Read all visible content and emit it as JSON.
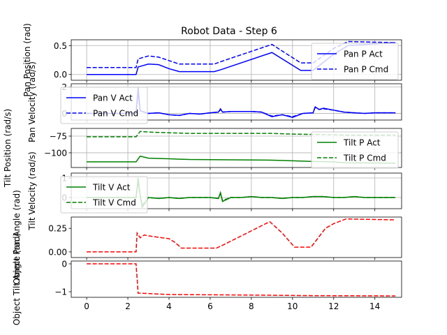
{
  "title": "Robot Data - Step 6",
  "chart_data": [
    {
      "type": "line",
      "ylabel": "Pan Position (rad)",
      "x": [
        0,
        2.4,
        2.5,
        3,
        3.5,
        4,
        4.5,
        6.2,
        6.5,
        9,
        10.4,
        11,
        12,
        12.7,
        15
      ],
      "series": [
        {
          "name": "Pan P Act",
          "color": "#0000ff",
          "linestyle": "solid",
          "values": [
            0,
            0,
            0.13,
            0.18,
            0.17,
            0.1,
            0.05,
            0.05,
            0.08,
            0.38,
            0.07,
            0.07,
            0.35,
            0.5,
            0.55
          ]
        },
        {
          "name": "Pan P Cmd",
          "color": "#0000ff",
          "linestyle": "dashed",
          "values": [
            0.12,
            0.12,
            0.27,
            0.32,
            0.3,
            0.24,
            0.18,
            0.18,
            0.22,
            0.52,
            0.2,
            0.2,
            0.45,
            0.57,
            0.55
          ]
        }
      ],
      "xlim": [
        -0.75,
        15.3
      ],
      "xticks": [
        0,
        2,
        4,
        6,
        8,
        10,
        12,
        14
      ],
      "ylim": [
        -0.1,
        0.6
      ],
      "yticks": [
        {
          "value": 0,
          "label": "0.0"
        },
        {
          "value": 0.5,
          "label": "0.5"
        }
      ],
      "grid": true,
      "legend": "upper right"
    },
    {
      "type": "line",
      "ylabel": "Pan Velocity (rad/s)",
      "x": [
        0,
        0.5,
        1,
        1.5,
        2,
        2.4,
        2.5,
        2.6,
        3,
        3.5,
        4,
        4.5,
        5,
        5.5,
        6,
        6.4,
        6.5,
        6.6,
        7,
        7.5,
        8,
        8.5,
        9,
        9.5,
        10,
        10.5,
        11,
        11.1,
        11.3,
        11.5,
        12,
        12.5,
        13,
        13.5,
        14,
        14.5,
        15
      ],
      "series": [
        {
          "name": "Pan V Act",
          "color": "#0000ff",
          "linestyle": "solid",
          "values": [
            0,
            0,
            0,
            0,
            0,
            0,
            2,
            0.2,
            0,
            0.05,
            -0.1,
            -0.15,
            0,
            -0.05,
            0.05,
            0.1,
            0.35,
            0.1,
            0.15,
            0.15,
            0.15,
            0.1,
            -0.25,
            -0.1,
            -0.3,
            0,
            0.05,
            0.5,
            0.3,
            0.4,
            0.25,
            0.1,
            0.05,
            0,
            0.05,
            0.05,
            0.05
          ]
        },
        {
          "name": "Pan V Cmd",
          "color": "#0000ff",
          "linestyle": "dashed",
          "values": [
            0,
            0,
            0,
            0,
            0,
            0,
            1.5,
            0.2,
            0,
            0.05,
            -0.1,
            -0.15,
            0,
            -0.05,
            0.05,
            0.1,
            0.3,
            0.1,
            0.15,
            0.15,
            0.15,
            0.1,
            -0.2,
            -0.1,
            -0.25,
            0,
            0.05,
            0.45,
            0.3,
            0.35,
            0.25,
            0.1,
            0.05,
            0,
            0.05,
            0.05,
            0.05
          ]
        }
      ],
      "xlim": [
        -0.75,
        15.3
      ],
      "xticks": [
        0,
        2,
        4,
        6,
        8,
        10,
        12,
        14
      ],
      "ylim": [
        -0.5,
        2.25
      ],
      "yticks": [
        0,
        2
      ],
      "grid": true,
      "legend": "upper left"
    },
    {
      "type": "line",
      "ylabel": "Tilt Position (rad/s)",
      "x": [
        0,
        2.4,
        2.6,
        3,
        4,
        5,
        7,
        9,
        10,
        11,
        12,
        12.5,
        15
      ],
      "series": [
        {
          "name": "Tilt P Act",
          "color": "#008000",
          "linestyle": "solid",
          "values": [
            -113.5,
            -113.5,
            -105,
            -108,
            -109,
            -110,
            -110.5,
            -111,
            -112,
            -113,
            -113.5,
            -115,
            -115.5
          ]
        },
        {
          "name": "Tilt P Cmd",
          "color": "#008000",
          "linestyle": "dashed",
          "values": [
            -76,
            -76,
            -68,
            -69,
            -70,
            -71,
            -71,
            -71,
            -72,
            -72.5,
            -73,
            -73.5,
            -73.5
          ]
        }
      ],
      "xlim": [
        -0.75,
        15.3
      ],
      "xticks": [
        0,
        2,
        4,
        6,
        8,
        10,
        12,
        14
      ],
      "ylim": [
        -122,
        -63.5
      ],
      "yticks": [
        {
          "value": -100,
          "label": "−100"
        },
        {
          "value": -75,
          "label": "−75"
        }
      ],
      "grid": true,
      "legend": "upper right"
    },
    {
      "type": "line",
      "ylabel": "Tilt Velocity (rad/s)",
      "x": [
        0,
        0.5,
        1,
        1.5,
        2,
        2.4,
        2.5,
        2.6,
        2.7,
        3,
        3.5,
        4,
        4.5,
        5,
        5.5,
        6,
        6.4,
        6.5,
        6.6,
        7,
        7.5,
        8,
        8.5,
        9,
        9.5,
        10,
        10.5,
        11,
        11.5,
        12,
        12.5,
        13,
        13.5,
        14,
        14.5,
        15
      ],
      "series": [
        {
          "name": "Tilt V Act",
          "color": "#008000",
          "linestyle": "solid",
          "values": [
            0,
            0,
            0,
            0,
            0,
            0,
            1,
            0.1,
            -0.5,
            0,
            -0.05,
            0,
            -0.05,
            0,
            0,
            0,
            -0.05,
            0.25,
            -0.2,
            0,
            0,
            0.05,
            0,
            0,
            -0.05,
            0,
            0,
            0.05,
            0.05,
            0,
            0,
            0.05,
            0,
            0,
            0,
            0
          ]
        },
        {
          "name": "Tilt V Cmd",
          "color": "#008000",
          "linestyle": "dashed",
          "values": [
            0,
            0,
            0,
            0,
            0,
            0,
            0.8,
            0.1,
            -0.4,
            0,
            -0.05,
            0,
            -0.05,
            0,
            0,
            0,
            -0.05,
            0.2,
            -0.15,
            0,
            0,
            0.05,
            0,
            0,
            -0.05,
            0,
            0,
            0.05,
            0.05,
            0,
            0,
            0.05,
            0,
            0,
            0,
            0
          ]
        }
      ],
      "xlim": [
        -0.75,
        15.3
      ],
      "xticks": [
        0,
        2,
        4,
        6,
        8,
        10,
        12,
        14
      ],
      "ylim": [
        -0.57,
        1.25
      ],
      "yticks": [
        0,
        1
      ],
      "grid": true,
      "legend": "upper left"
    },
    {
      "type": "line",
      "ylabel": "Object Pan Angle (rad)",
      "x": [
        0,
        2.4,
        2.45,
        2.6,
        2.8,
        3,
        4,
        4.3,
        4.6,
        6.3,
        6.6,
        8.7,
        8.9,
        9.5,
        10.1,
        10.9,
        11.6,
        12,
        12.6,
        15
      ],
      "values": [
        0,
        0,
        0.2,
        0.15,
        0.18,
        0.17,
        0.14,
        0.1,
        0.04,
        0.04,
        0.07,
        0.3,
        0.32,
        0.2,
        0.05,
        0.05,
        0.25,
        0.3,
        0.35,
        0.34
      ],
      "color": "#ff0000",
      "linestyle": "dashed",
      "xlim": [
        -0.75,
        15.3
      ],
      "xticks": [
        0,
        2,
        4,
        6,
        8,
        10,
        12,
        14
      ],
      "ylim": [
        -0.06,
        0.37
      ],
      "yticks": [
        {
          "value": 0,
          "label": "0.00"
        },
        {
          "value": 0.25,
          "label": "0.25"
        }
      ],
      "grid": false
    },
    {
      "type": "line",
      "ylabel": "Object Tilt Angle (rad)",
      "x": [
        0,
        2.4,
        2.5,
        4,
        8,
        11,
        15
      ],
      "values": [
        0,
        0,
        -1.05,
        -1.1,
        -1.12,
        -1.14,
        -1.15
      ],
      "color": "#ff0000",
      "linestyle": "dashed",
      "xlim": [
        -0.75,
        15.3
      ],
      "xticks": [
        0,
        2,
        4,
        6,
        8,
        10,
        12,
        14
      ],
      "ylim": [
        -1.2,
        0.1
      ],
      "yticks": [
        {
          "value": -1,
          "label": "−1"
        },
        0
      ],
      "grid": false,
      "xticklabels": true
    }
  ]
}
